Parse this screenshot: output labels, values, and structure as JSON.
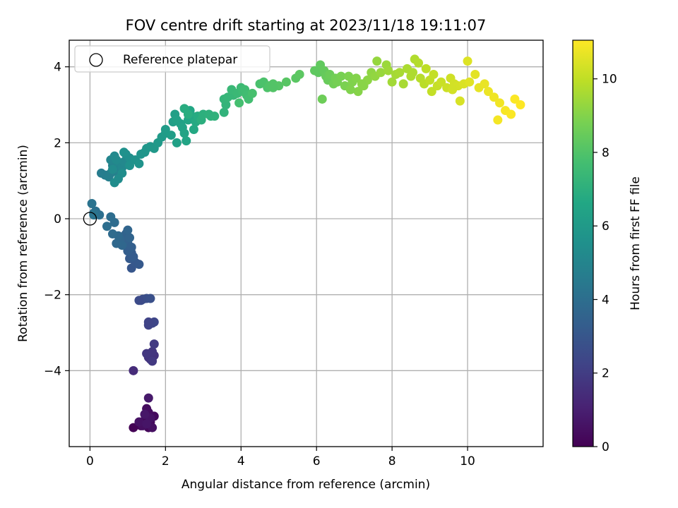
{
  "chart_data": {
    "type": "scatter",
    "title": "FOV centre drift starting at 2023/11/18 19:11:07",
    "xlabel": "Angular distance from reference (arcmin)",
    "ylabel": "Rotation from reference (arcmin)",
    "xlim": [
      -0.55,
      12.0
    ],
    "ylim": [
      -6.0,
      4.7
    ],
    "xticks": [
      0,
      2,
      4,
      6,
      8,
      10
    ],
    "yticks": [
      -4,
      -2,
      0,
      2,
      4
    ],
    "xtick_labels": [
      "0",
      "2",
      "4",
      "6",
      "8",
      "10"
    ],
    "ytick_labels": [
      "−4",
      "−2",
      "0",
      "2",
      "4"
    ],
    "grid": true,
    "legend": {
      "placement": "top-left",
      "label": "Reference platepar",
      "marker": "open-circle"
    },
    "reference_point": {
      "x": 0,
      "y": 0
    },
    "colorbar": {
      "label": "Hours from first FF file",
      "colormap": "viridis",
      "range": [
        0,
        11.05
      ],
      "ticks": [
        0,
        2,
        4,
        6,
        8,
        10
      ],
      "tick_labels": [
        "0",
        "2",
        "4",
        "6",
        "8",
        "10"
      ]
    },
    "series": [
      {
        "points": [
          [
            1.15,
            -5.5,
            0.05
          ],
          [
            1.35,
            -5.45,
            0.1
          ],
          [
            1.45,
            -5.3,
            0.15
          ],
          [
            1.55,
            -5.5,
            0.2
          ],
          [
            1.6,
            -5.35,
            0.25
          ],
          [
            1.7,
            -5.2,
            0.3
          ],
          [
            1.5,
            -5.0,
            0.35
          ],
          [
            1.55,
            -5.1,
            0.4
          ],
          [
            1.4,
            -5.45,
            0.45
          ],
          [
            1.65,
            -5.5,
            0.5
          ],
          [
            1.3,
            -5.35,
            0.55
          ],
          [
            1.6,
            -5.25,
            0.6
          ],
          [
            1.5,
            -5.4,
            0.65
          ],
          [
            1.45,
            -5.15,
            0.7
          ],
          [
            1.55,
            -4.72,
            0.8
          ],
          [
            1.15,
            -4.0,
            1.4
          ],
          [
            1.6,
            -3.7,
            1.6
          ],
          [
            1.7,
            -3.6,
            1.65
          ],
          [
            1.55,
            -3.65,
            1.7
          ],
          [
            1.65,
            -3.5,
            1.75
          ],
          [
            1.5,
            -3.55,
            1.8
          ],
          [
            1.7,
            -3.3,
            1.9
          ],
          [
            1.65,
            -3.75,
            1.85
          ],
          [
            1.55,
            -2.8,
            2.2
          ],
          [
            1.65,
            -2.75,
            2.3
          ],
          [
            1.7,
            -2.72,
            2.35
          ],
          [
            1.55,
            -2.72,
            2.25
          ],
          [
            1.35,
            -2.15,
            2.6
          ],
          [
            1.5,
            -2.1,
            2.7
          ],
          [
            1.4,
            -2.12,
            2.65
          ],
          [
            1.6,
            -2.1,
            2.75
          ],
          [
            1.3,
            -2.15,
            2.55
          ],
          [
            1.1,
            -1.3,
            3.0
          ],
          [
            1.2,
            -1.15,
            3.05
          ],
          [
            1.3,
            -1.2,
            3.1
          ],
          [
            1.05,
            -1.05,
            3.15
          ],
          [
            1.1,
            -0.9,
            3.2
          ],
          [
            1.15,
            -1.0,
            3.25
          ],
          [
            1.0,
            -0.85,
            3.3
          ],
          [
            1.1,
            -0.75,
            3.35
          ],
          [
            1.0,
            -0.65,
            3.4
          ],
          [
            0.9,
            -0.6,
            3.45
          ],
          [
            0.95,
            -0.4,
            3.5
          ],
          [
            1.05,
            -0.5,
            3.55
          ],
          [
            1.0,
            -0.3,
            3.6
          ],
          [
            0.8,
            -0.55,
            3.65
          ],
          [
            0.85,
            -0.7,
            3.7
          ],
          [
            0.7,
            -0.65,
            3.75
          ],
          [
            0.75,
            -0.45,
            3.8
          ],
          [
            0.6,
            -0.4,
            3.85
          ],
          [
            0.65,
            -0.1,
            3.9
          ],
          [
            0.55,
            0.05,
            3.95
          ],
          [
            0.45,
            -0.2,
            4.0
          ],
          [
            0.25,
            0.1,
            4.05
          ],
          [
            0.15,
            0.2,
            4.1
          ],
          [
            0.1,
            0.15,
            4.15
          ],
          [
            0.05,
            0.4,
            4.2
          ],
          [
            0.1,
            0.1,
            4.25
          ],
          [
            0.3,
            1.2,
            4.6
          ],
          [
            0.4,
            1.15,
            4.65
          ],
          [
            0.55,
            1.2,
            4.7
          ],
          [
            0.5,
            1.1,
            4.75
          ],
          [
            0.65,
            1.25,
            4.8
          ],
          [
            0.75,
            1.3,
            4.85
          ],
          [
            0.6,
            1.4,
            4.9
          ],
          [
            0.7,
            1.5,
            4.95
          ],
          [
            0.55,
            1.55,
            5.0
          ],
          [
            0.8,
            1.45,
            5.05
          ],
          [
            0.85,
            1.35,
            5.1
          ],
          [
            0.9,
            1.5,
            5.15
          ],
          [
            0.65,
            1.65,
            5.2
          ],
          [
            0.7,
            1.55,
            5.25
          ],
          [
            0.6,
            1.3,
            5.3
          ],
          [
            0.65,
            0.95,
            5.35
          ],
          [
            0.85,
            1.2,
            5.4
          ],
          [
            0.95,
            1.7,
            5.45
          ],
          [
            1.05,
            1.6,
            5.5
          ],
          [
            0.9,
            1.75,
            5.55
          ],
          [
            1.2,
            1.55,
            5.6
          ],
          [
            1.3,
            1.45,
            5.65
          ],
          [
            1.35,
            1.7,
            5.7
          ],
          [
            1.45,
            1.75,
            5.75
          ],
          [
            1.5,
            1.85,
            5.8
          ],
          [
            1.6,
            1.9,
            5.85
          ],
          [
            1.7,
            1.85,
            5.9
          ],
          [
            1.8,
            2.0,
            5.95
          ],
          [
            1.9,
            2.15,
            6.0
          ],
          [
            2.0,
            2.25,
            6.05
          ],
          [
            2.0,
            2.35,
            6.1
          ],
          [
            2.15,
            2.2,
            6.15
          ],
          [
            2.2,
            2.55,
            6.2
          ],
          [
            2.25,
            2.75,
            6.25
          ],
          [
            2.3,
            2.0,
            6.3
          ],
          [
            2.4,
            2.5,
            6.35
          ],
          [
            2.45,
            2.4,
            6.4
          ],
          [
            2.5,
            2.25,
            6.45
          ],
          [
            2.55,
            2.05,
            6.5
          ],
          [
            2.6,
            2.6,
            6.55
          ],
          [
            2.65,
            2.85,
            6.6
          ],
          [
            2.7,
            2.7,
            6.65
          ],
          [
            2.75,
            2.35,
            6.7
          ],
          [
            2.8,
            2.55,
            6.75
          ],
          [
            2.85,
            2.7,
            6.8
          ],
          [
            2.5,
            2.9,
            6.85
          ],
          [
            2.6,
            2.75,
            6.9
          ],
          [
            2.95,
            2.6,
            6.95
          ],
          [
            3.0,
            2.75,
            7.0
          ],
          [
            3.2,
            2.7,
            7.05
          ],
          [
            3.3,
            2.7,
            7.1
          ],
          [
            3.55,
            2.8,
            7.15
          ],
          [
            3.6,
            3.0,
            7.2
          ],
          [
            3.55,
            3.15,
            7.25
          ],
          [
            3.65,
            3.2,
            7.3
          ],
          [
            3.8,
            3.25,
            7.35
          ],
          [
            3.75,
            3.4,
            7.4
          ],
          [
            3.9,
            3.3,
            7.45
          ],
          [
            4.0,
            3.45,
            7.5
          ],
          [
            4.05,
            3.35,
            7.55
          ],
          [
            4.1,
            3.4,
            7.6
          ],
          [
            4.15,
            3.25,
            7.65
          ],
          [
            4.2,
            3.15,
            7.7
          ],
          [
            3.95,
            3.05,
            7.75
          ],
          [
            4.3,
            3.3,
            7.8
          ],
          [
            4.5,
            3.55,
            7.85
          ],
          [
            4.6,
            3.6,
            7.9
          ],
          [
            4.7,
            3.45,
            7.95
          ],
          [
            4.75,
            3.5,
            8.0
          ],
          [
            4.85,
            3.55,
            8.05
          ],
          [
            5.0,
            3.5,
            8.1
          ],
          [
            5.2,
            3.6,
            8.15
          ],
          [
            5.45,
            3.7,
            8.2
          ],
          [
            5.55,
            3.8,
            8.25
          ],
          [
            6.05,
            3.85,
            8.3
          ],
          [
            6.1,
            4.05,
            8.35
          ],
          [
            6.2,
            3.9,
            8.4
          ],
          [
            6.25,
            3.75,
            8.45
          ],
          [
            6.3,
            3.65,
            8.5
          ],
          [
            6.35,
            3.8,
            8.55
          ],
          [
            6.15,
            3.15,
            8.6
          ],
          [
            6.45,
            3.55,
            8.65
          ],
          [
            6.5,
            3.7,
            8.7
          ],
          [
            6.55,
            3.6,
            8.75
          ],
          [
            6.65,
            3.75,
            8.8
          ],
          [
            6.75,
            3.5,
            8.85
          ],
          [
            6.85,
            3.75,
            8.9
          ],
          [
            6.95,
            3.6,
            8.95
          ],
          [
            7.05,
            3.7,
            9.0
          ],
          [
            7.1,
            3.35,
            9.05
          ],
          [
            7.25,
            3.5,
            9.1
          ],
          [
            7.35,
            3.65,
            9.15
          ],
          [
            7.45,
            3.85,
            9.2
          ],
          [
            7.55,
            3.75,
            9.25
          ],
          [
            7.6,
            4.15,
            9.3
          ],
          [
            7.7,
            3.85,
            9.35
          ],
          [
            7.85,
            4.05,
            9.4
          ],
          [
            7.9,
            3.9,
            9.45
          ],
          [
            8.0,
            3.6,
            9.5
          ],
          [
            8.1,
            3.8,
            9.55
          ],
          [
            8.2,
            3.85,
            9.6
          ],
          [
            8.4,
            3.95,
            9.65
          ],
          [
            8.55,
            3.85,
            9.7
          ],
          [
            8.6,
            4.2,
            9.75
          ],
          [
            8.7,
            4.1,
            9.8
          ],
          [
            8.75,
            3.7,
            9.85
          ],
          [
            8.85,
            3.55,
            9.9
          ],
          [
            8.9,
            3.95,
            9.95
          ],
          [
            9.0,
            3.65,
            10.0
          ],
          [
            9.1,
            3.8,
            10.05
          ],
          [
            9.2,
            3.5,
            10.1
          ],
          [
            9.3,
            3.6,
            10.15
          ],
          [
            9.45,
            3.45,
            10.2
          ],
          [
            9.55,
            3.7,
            10.25
          ],
          [
            9.65,
            3.55,
            10.3
          ],
          [
            9.75,
            3.5,
            10.35
          ],
          [
            9.8,
            3.1,
            10.4
          ],
          [
            9.9,
            3.55,
            10.45
          ],
          [
            10.0,
            4.15,
            10.5
          ],
          [
            10.05,
            3.6,
            10.55
          ],
          [
            10.2,
            3.8,
            10.6
          ],
          [
            10.3,
            3.45,
            10.65
          ],
          [
            10.45,
            3.55,
            10.7
          ],
          [
            10.55,
            3.35,
            10.75
          ],
          [
            10.7,
            3.2,
            10.8
          ],
          [
            10.85,
            3.05,
            10.85
          ],
          [
            10.8,
            2.6,
            10.9
          ],
          [
            11.0,
            2.85,
            10.95
          ],
          [
            11.15,
            2.75,
            11.0
          ],
          [
            11.25,
            3.15,
            11.02
          ],
          [
            11.4,
            3.0,
            11.05
          ],
          [
            8.5,
            3.75,
            9.7
          ],
          [
            9.05,
            3.35,
            10.05
          ],
          [
            7.2,
            3.55,
            9.1
          ],
          [
            6.9,
            3.4,
            8.95
          ],
          [
            5.95,
            3.9,
            8.3
          ],
          [
            4.85,
            3.45,
            8.05
          ],
          [
            1.05,
            1.4,
            5.55
          ],
          [
            0.75,
            1.05,
            5.35
          ],
          [
            2.3,
            2.6,
            6.35
          ],
          [
            3.15,
            2.75,
            7.05
          ],
          [
            8.3,
            3.55,
            9.6
          ],
          [
            9.6,
            3.4,
            10.3
          ]
        ]
      }
    ]
  }
}
